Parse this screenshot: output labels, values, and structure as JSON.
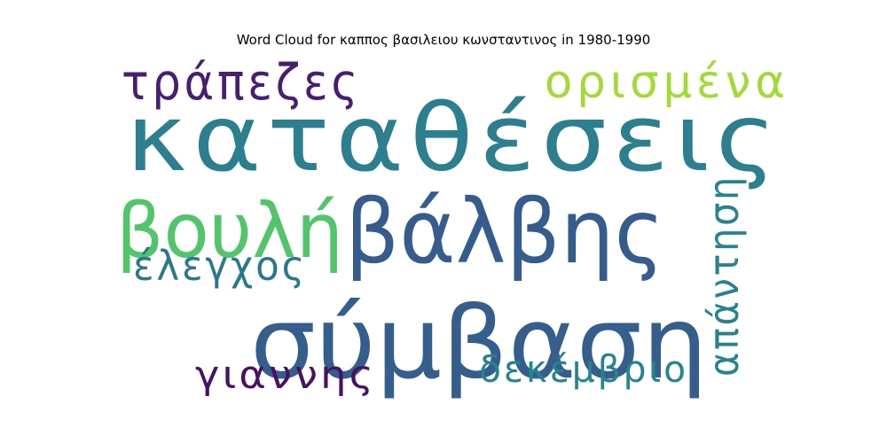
{
  "chart_data": {
    "type": "wordcloud",
    "title": "Word Cloud for καππος βασιλειου κωνσταντινος in 1980-1990",
    "words": [
      {
        "text": "καταθέσεις",
        "weight": 1.0,
        "color": "#2c7f8e"
      },
      {
        "text": "σύμβαση",
        "weight": 0.88,
        "color": "#355e8d"
      },
      {
        "text": "βάλβης",
        "weight": 0.74,
        "color": "#365c8d"
      },
      {
        "text": "βουλή",
        "weight": 0.6,
        "color": "#52c56a"
      },
      {
        "text": "τράπεζες",
        "weight": 0.44,
        "color": "#481f70"
      },
      {
        "text": "ορισμένα",
        "weight": 0.44,
        "color": "#a2da37"
      },
      {
        "text": "έλεγχος",
        "weight": 0.34,
        "color": "#2a788e"
      },
      {
        "text": "απάντηση",
        "weight": 0.34,
        "color": "#26838e"
      },
      {
        "text": "γιαννης",
        "weight": 0.3,
        "color": "#471164"
      },
      {
        "text": "δεκέμβριο",
        "weight": 0.3,
        "color": "#25858e"
      }
    ]
  }
}
